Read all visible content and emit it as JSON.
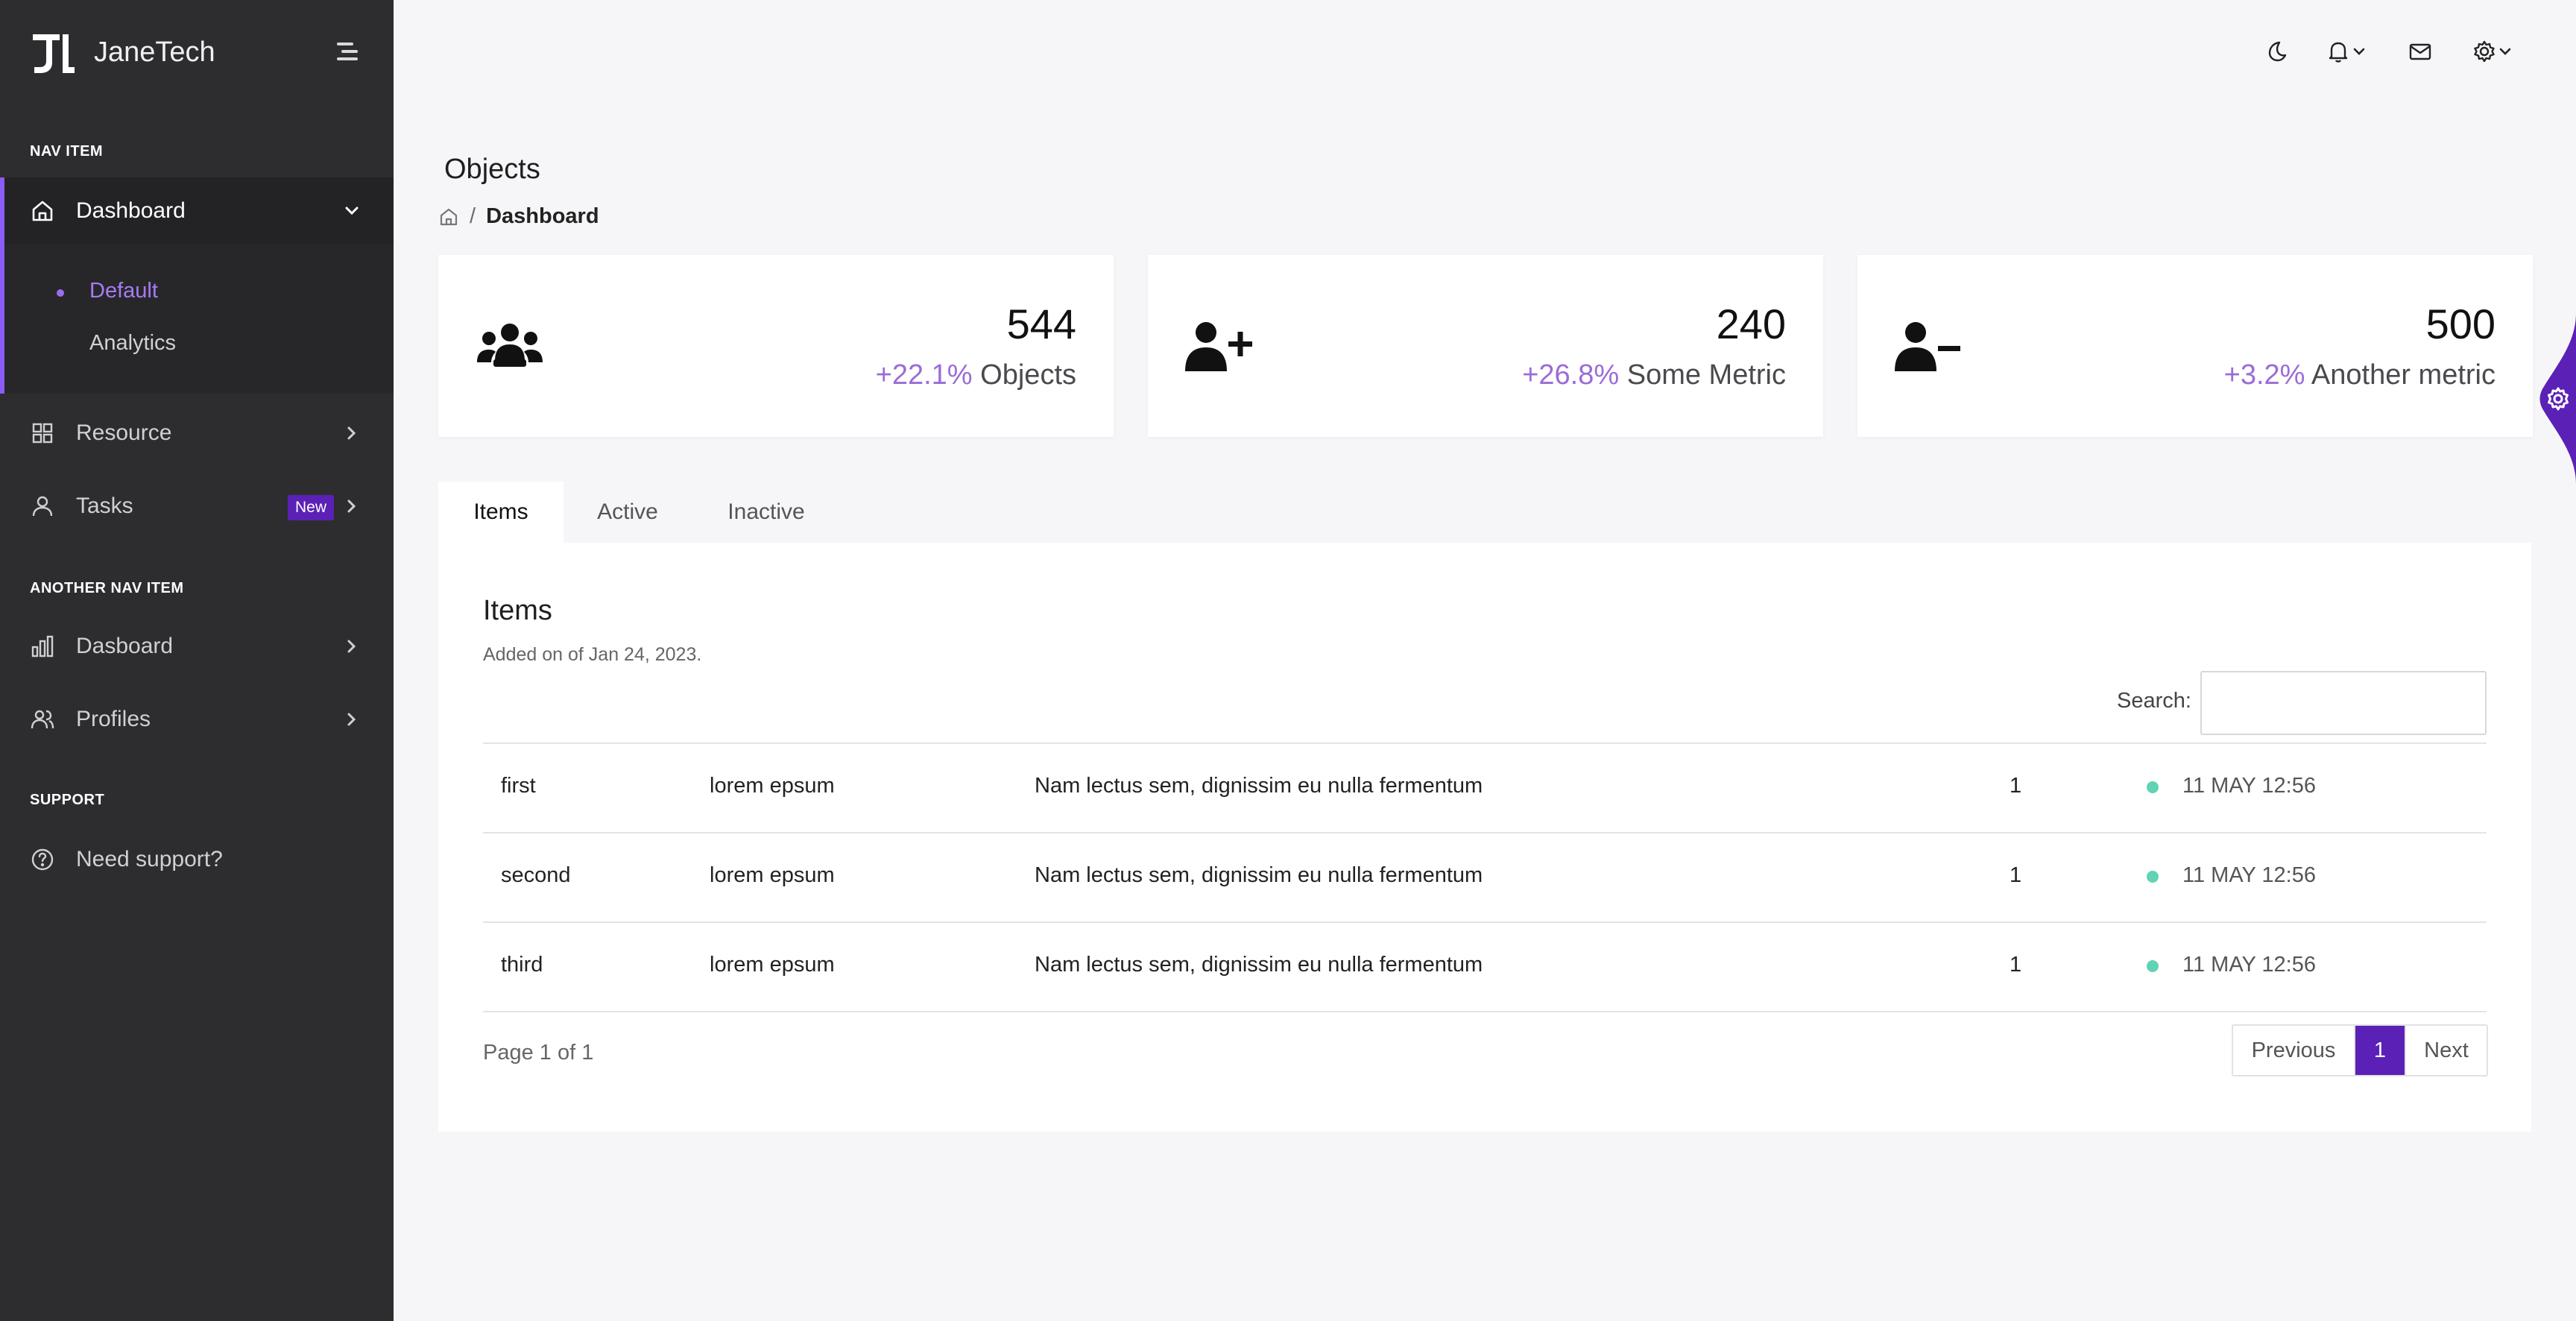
{
  "brand": {
    "name": "JaneTech"
  },
  "sidebar": {
    "sections": [
      "NAV ITEM",
      "ANOTHER NAV ITEM",
      "SUPPORT"
    ],
    "items": [
      {
        "label": "Dashboard",
        "icon": "home-icon"
      },
      {
        "label": "Resource",
        "icon": "grid-icon"
      },
      {
        "label": "Tasks",
        "icon": "user-icon",
        "badge": "New"
      },
      {
        "label": "Dasboard",
        "icon": "bar-chart-icon"
      },
      {
        "label": "Profiles",
        "icon": "users-icon"
      },
      {
        "label": "Need support?",
        "icon": "help-circle-icon"
      }
    ],
    "submenu": [
      {
        "label": "Default"
      },
      {
        "label": "Analytics"
      }
    ]
  },
  "header": {
    "icons": [
      "moon-icon",
      "bell-icon",
      "mail-icon",
      "gear-icon"
    ]
  },
  "page": {
    "title": "Objects",
    "breadcrumb": {
      "current": "Dashboard"
    }
  },
  "cards": [
    {
      "value": "544",
      "change": "+22.1%",
      "label": "Objects",
      "icon": "users-group-icon"
    },
    {
      "value": "240",
      "change": "+26.8%",
      "label": "Some Metric",
      "icon": "user-plus-icon"
    },
    {
      "value": "500",
      "change": "+3.2%",
      "label": "Another metric",
      "icon": "user-minus-icon"
    }
  ],
  "tabs": [
    {
      "label": "Items"
    },
    {
      "label": "Active"
    },
    {
      "label": "Inactive"
    }
  ],
  "table": {
    "title": "Items",
    "subtitle": "Added on of Jan 24, 2023.",
    "search_label": "Search:",
    "search_value": "",
    "rows": [
      {
        "name": "first",
        "col2": "lorem epsum",
        "desc": "Nam lectus sem, dignissim eu nulla fermentum",
        "count": "1",
        "time": "11 MAY 12:56"
      },
      {
        "name": "second",
        "col2": "lorem epsum",
        "desc": "Nam lectus sem, dignissim eu nulla fermentum",
        "count": "1",
        "time": "11 MAY 12:56"
      },
      {
        "name": "third",
        "col2": "lorem epsum",
        "desc": "Nam lectus sem, dignissim eu nulla fermentum",
        "count": "1",
        "time": "11 MAY 12:56"
      }
    ],
    "page_info": "Page 1 of 1",
    "pager": {
      "prev": "Previous",
      "current": "1",
      "next": "Next"
    }
  },
  "colors": {
    "accent": "#5b21b6",
    "accent_light": "#9b6cd6",
    "sidebar_bg": "#2d2d2f",
    "status_dot": "#5fd3b3"
  }
}
